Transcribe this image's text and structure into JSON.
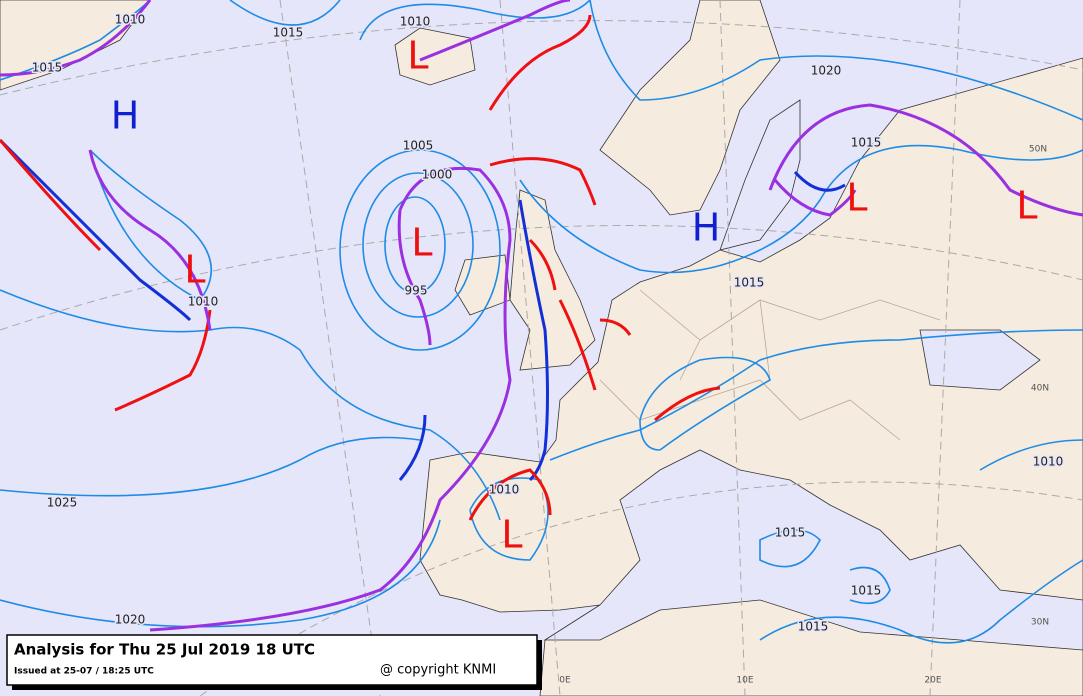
{
  "map": {
    "title": "Analysis for Thu 25 Jul 2019 18 UTC",
    "issued": "Issued at 25-07 / 18:25 UTC",
    "copyright": "@ copyright KNMI",
    "isobar_labels": [
      1010,
      1015,
      1015,
      1010,
      1020,
      1005,
      1000,
      995,
      1010,
      1015,
      1015,
      1025,
      1010,
      1015,
      1015,
      1015,
      1020,
      1010
    ],
    "centers": [
      "H",
      "H",
      "L",
      "L",
      "L",
      "L",
      "L",
      "L"
    ],
    "grid_labels": [
      "50N",
      "40N",
      "30N",
      "0E",
      "10E",
      "20E"
    ]
  }
}
